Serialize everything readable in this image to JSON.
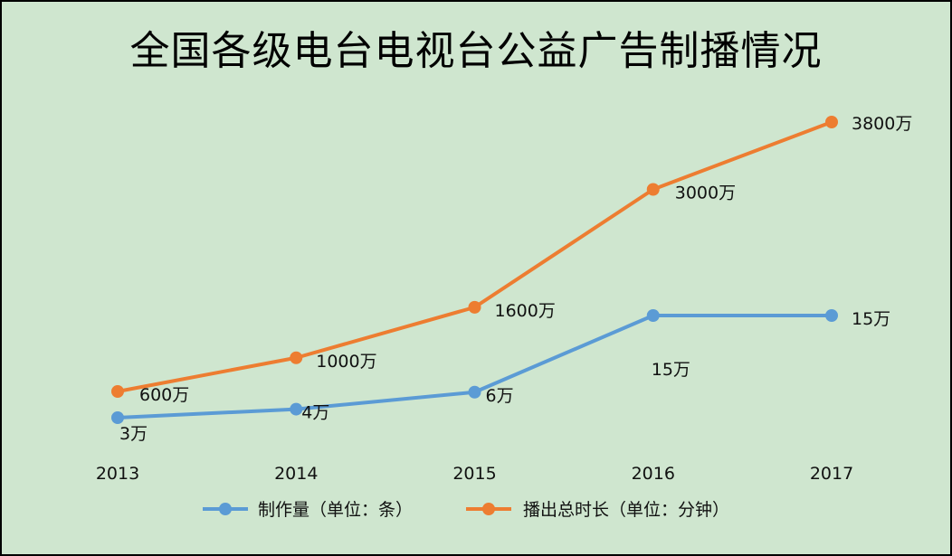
{
  "chart_data": {
    "type": "line",
    "title": "全国各级电台电视台公益广告制播情况",
    "categories": [
      "2013",
      "2014",
      "2015",
      "2016",
      "2017"
    ],
    "series": [
      {
        "name": "制作量（单位：条）",
        "color": "#5b9bd5",
        "values": [
          3,
          4,
          6,
          15,
          15
        ],
        "labels": [
          "3万",
          "4万",
          "6万",
          "15万",
          "15万"
        ]
      },
      {
        "name": "播出总时长（单位：分钟）",
        "color": "#ed7d31",
        "values": [
          600,
          1000,
          1600,
          3000,
          3800
        ],
        "labels": [
          "600万",
          "1000万",
          "1600万",
          "3000万",
          "3800万"
        ]
      }
    ],
    "grid": false,
    "legend": "bottom"
  }
}
